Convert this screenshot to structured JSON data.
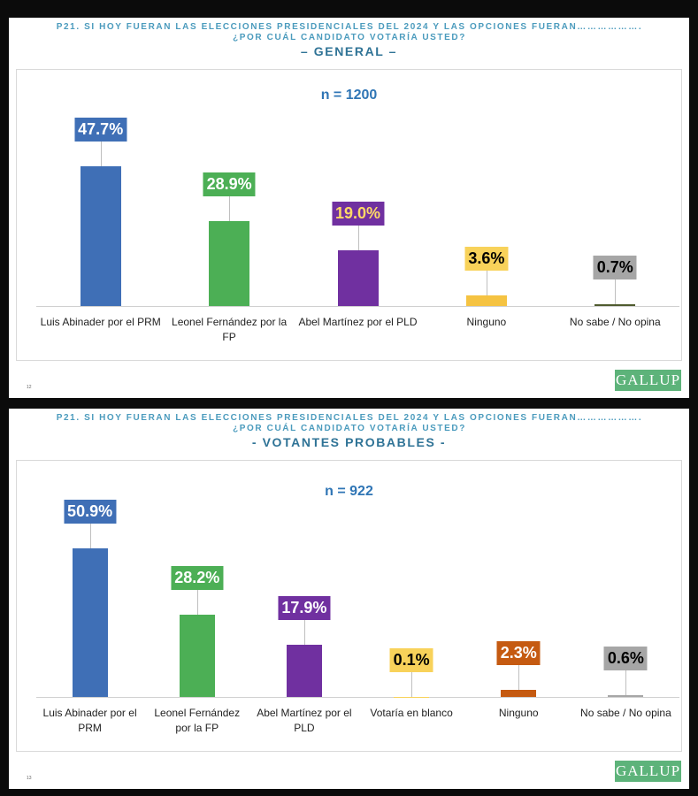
{
  "chart_data": [
    {
      "type": "bar",
      "title": "P21. SI HOY FUERAN LAS ELECCIONES PRESIDENCIALES DEL 2024 Y LAS OPCIONES FUERAN………………. ¿POR CUÁL CANDIDATO VOTARÍA USTED?",
      "subtitle": "– GENERAL –",
      "annotation": "n = 1200",
      "categories": [
        "Luis Abinader por el PRM",
        "Leonel Fernández por la FP",
        "Abel Martínez por el PLD",
        "Ninguno",
        "No sabe / No opina"
      ],
      "values": [
        47.7,
        28.9,
        19.0,
        3.6,
        0.7
      ],
      "value_labels": [
        "47.7%",
        "28.9%",
        "19.0%",
        "3.6%",
        "0.7%"
      ],
      "colors": [
        "#3f6fb6",
        "#4caf55",
        "#7030a0",
        "#f5c342",
        "#4f5b2e"
      ],
      "label_box_colors": [
        "#3f6fb6",
        "#4caf55",
        "#7030a0",
        "#f8d25a",
        "#a6a6a6"
      ],
      "label_text_colors": [
        "#ffffff",
        "#ffffff",
        "#ffd966",
        "#000000",
        "#000000"
      ],
      "page_number": "12",
      "logo": "GALLUP"
    },
    {
      "type": "bar",
      "title": "P21. SI HOY FUERAN LAS ELECCIONES PRESIDENCIALES DEL 2024 Y LAS OPCIONES FUERAN………………. ¿POR CUÁL CANDIDATO VOTARÍA USTED?",
      "subtitle": "- VOTANTES PROBABLES -",
      "annotation": "n = 922",
      "categories": [
        "Luis Abinader por el PRM",
        "Leonel Fernández por la FP",
        "Abel Martínez por el PLD",
        "Votaría en blanco",
        "Ninguno",
        "No sabe / No opina"
      ],
      "values": [
        50.9,
        28.2,
        17.9,
        0.1,
        2.3,
        0.6
      ],
      "value_labels": [
        "50.9%",
        "28.2%",
        "17.9%",
        "0.1%",
        "2.3%",
        "0.6%"
      ],
      "colors": [
        "#3f6fb6",
        "#4caf55",
        "#7030a0",
        "#f8d25a",
        "#c55a11",
        "#a6a6a6"
      ],
      "label_box_colors": [
        "#3f6fb6",
        "#4caf55",
        "#7030a0",
        "#f8d25a",
        "#c55a11",
        "#a6a6a6"
      ],
      "label_text_colors": [
        "#ffffff",
        "#ffffff",
        "#ffffff",
        "#000000",
        "#ffffff",
        "#000000"
      ],
      "page_number": "13",
      "logo": "GALLUP"
    }
  ]
}
